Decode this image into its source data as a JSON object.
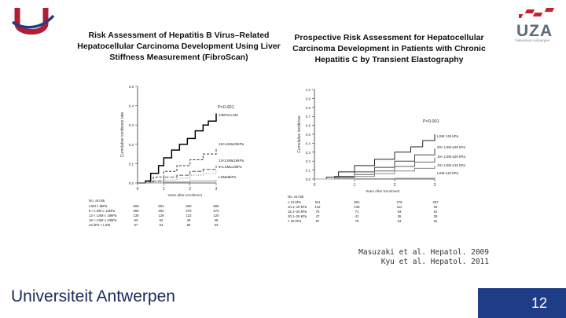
{
  "slide": {
    "page_number": "12",
    "university": "Universiteit Antwerpen",
    "citations": [
      "Masuzaki et al. Hepatol. 2009",
      "Kyu et al. Hepatol. 2011"
    ],
    "uza_logo": "UZA",
    "uza_tagline": "Ziekenhuis Antwerpen",
    "brand_colors": {
      "navy": "#1f3d86",
      "logo_red": "#b01e35",
      "uza_red": "#c8202f"
    }
  },
  "chart_data": [
    {
      "type": "line",
      "title_lines": [
        "Risk Assessment of Hepatitis B Virus–Related",
        "Hepatocellular Carcinoma Development Using Liver",
        "Stiffness Measurement (FibroScan)"
      ],
      "ylabel": "Cumulative incidence rate",
      "xlabel": "Years after enrollment",
      "xlim": [
        0,
        3
      ],
      "ylim": [
        0,
        0.5
      ],
      "y_ticks": [
        "0.5",
        "0.4",
        "0.3",
        "0.2",
        "0.1",
        "0.0"
      ],
      "x_ticks": [
        "0",
        "1",
        "2",
        "3"
      ],
      "p_value": "P<0.001",
      "series": [
        {
          "name": "23kPa<LSM",
          "color": "#000000",
          "width": 1.5,
          "dash": "",
          "points": [
            [
              0,
              0
            ],
            [
              0.3,
              0.01
            ],
            [
              0.5,
              0.05
            ],
            [
              0.8,
              0.09
            ],
            [
              1.0,
              0.13
            ],
            [
              1.3,
              0.17
            ],
            [
              1.6,
              0.2
            ],
            [
              1.9,
              0.23
            ],
            [
              2.2,
              0.27
            ],
            [
              2.5,
              0.3
            ],
            [
              2.7,
              0.32
            ],
            [
              3.0,
              0.36
            ]
          ]
        },
        {
          "name": "18<LSM≤23kPa",
          "color": "#333333",
          "width": 1,
          "dash": "3,2",
          "points": [
            [
              0,
              0
            ],
            [
              0.3,
              0.005
            ],
            [
              0.6,
              0.03
            ],
            [
              1.0,
              0.06
            ],
            [
              1.5,
              0.09
            ],
            [
              2.0,
              0.12
            ],
            [
              2.5,
              0.15
            ],
            [
              3.0,
              0.18
            ]
          ]
        },
        {
          "name": "13<LSM≤18kPa",
          "color": "#555555",
          "width": 1,
          "dash": "5,2",
          "points": [
            [
              0,
              0
            ],
            [
              0.5,
              0.01
            ],
            [
              1.0,
              0.03
            ],
            [
              1.5,
              0.04
            ],
            [
              2.0,
              0.06
            ],
            [
              2.5,
              0.07
            ],
            [
              3.0,
              0.09
            ]
          ]
        },
        {
          "name": "8<LSM≤13kPa",
          "color": "#777777",
          "width": 1,
          "dash": "1,2",
          "points": [
            [
              0,
              0
            ],
            [
              0.5,
              0.005
            ],
            [
              1.0,
              0.015
            ],
            [
              1.5,
              0.025
            ],
            [
              2.0,
              0.04
            ],
            [
              2.5,
              0.05
            ],
            [
              3.0,
              0.06
            ]
          ]
        },
        {
          "name": "LSM≤8kPa",
          "color": "#999999",
          "width": 1,
          "dash": "",
          "points": [
            [
              0,
              0
            ],
            [
              1.0,
              0.005
            ],
            [
              2.0,
              0.01
            ],
            [
              3.0,
              0.015
            ]
          ]
        }
      ],
      "at_risk": {
        "header": "No. at risk",
        "rows": [
          [
            "LSM ≤ 8kPa",
            "505",
            "504",
            "500",
            "500"
          ],
          [
            "8 < LSM ≤ 13kPa",
            "256",
            "252",
            "270",
            "272"
          ],
          [
            "13 < LSM ≤ 18kPa",
            "130",
            "128",
            "122",
            "120"
          ],
          [
            "18 < LSM ≤ 23kPa",
            "63",
            "62",
            "49",
            "45"
          ],
          [
            "23 kPa < LSM",
            "67",
            "64",
            "55",
            "53"
          ]
        ]
      }
    },
    {
      "type": "line",
      "title_lines": [
        "Prospective Risk Assessment for Hepatocellular",
        "Carcinoma Development in Patients with Chronic",
        "Hepatitis C by Transient Elastography"
      ],
      "ylabel": "Cumulative incidence",
      "xlabel": "Years After Enrolment",
      "xlim": [
        0,
        3
      ],
      "ylim": [
        0,
        1.0
      ],
      "y_ticks": [
        "1.0",
        "0.9",
        "0.8",
        "0.7",
        "0.6",
        "0.5",
        "0.4",
        "0.3",
        "0.2",
        "0.1",
        "0.0"
      ],
      "x_ticks": [
        "0",
        "1",
        "2",
        "3"
      ],
      "p_value": "P<0.001",
      "series": [
        {
          "name": "LSM >25 kPa",
          "color": "#222222",
          "width": 1,
          "dash": "",
          "points": [
            [
              0,
              0
            ],
            [
              0.3,
              0.02
            ],
            [
              0.6,
              0.08
            ],
            [
              1.0,
              0.15
            ],
            [
              1.5,
              0.22
            ],
            [
              2.0,
              0.3
            ],
            [
              2.4,
              0.36
            ],
            [
              2.7,
              0.43
            ],
            [
              3.0,
              0.5
            ]
          ]
        },
        {
          "name": "20< LSM ≤25 kPa",
          "color": "#444444",
          "width": 1,
          "dash": "",
          "points": [
            [
              0,
              0
            ],
            [
              0.5,
              0.03
            ],
            [
              1.0,
              0.08
            ],
            [
              1.5,
              0.13
            ],
            [
              2.0,
              0.2
            ],
            [
              2.5,
              0.27
            ],
            [
              3.0,
              0.34
            ]
          ]
        },
        {
          "name": "15< LSM ≤20 kPa",
          "color": "#666666",
          "width": 1,
          "dash": "",
          "points": [
            [
              0,
              0
            ],
            [
              0.5,
              0.02
            ],
            [
              1.0,
              0.05
            ],
            [
              1.5,
              0.09
            ],
            [
              2.0,
              0.14
            ],
            [
              2.5,
              0.19
            ],
            [
              3.0,
              0.24
            ]
          ]
        },
        {
          "name": "10< LSM ≤15 kPa",
          "color": "#888888",
          "width": 1,
          "dash": "",
          "points": [
            [
              0,
              0
            ],
            [
              0.5,
              0.01
            ],
            [
              1.0,
              0.03
            ],
            [
              1.5,
              0.06
            ],
            [
              2.0,
              0.09
            ],
            [
              2.5,
              0.12
            ],
            [
              3.0,
              0.15
            ]
          ]
        },
        {
          "name": "LSM ≤10 kPa",
          "color": "#aaaaaa",
          "width": 1,
          "dash": "",
          "points": [
            [
              0,
              0
            ],
            [
              1.0,
              0.005
            ],
            [
              2.0,
              0.01
            ],
            [
              3.0,
              0.02
            ]
          ]
        }
      ],
      "at_risk": {
        "header": "No. at risk",
        "rows": [
          [
            "≤ 10 kPa",
            "511",
            "501",
            "475",
            "457"
          ],
          [
            "10.1–15 kPa",
            "142",
            "133",
            "111",
            "94"
          ],
          [
            "15.1–20 kPa",
            "75",
            "71",
            "63",
            "51"
          ],
          [
            "20.1–25 kPa",
            "47",
            "41",
            "36",
            "29"
          ],
          [
            "> 25 kPa",
            "87",
            "78",
            "64",
            "61"
          ]
        ]
      }
    }
  ]
}
